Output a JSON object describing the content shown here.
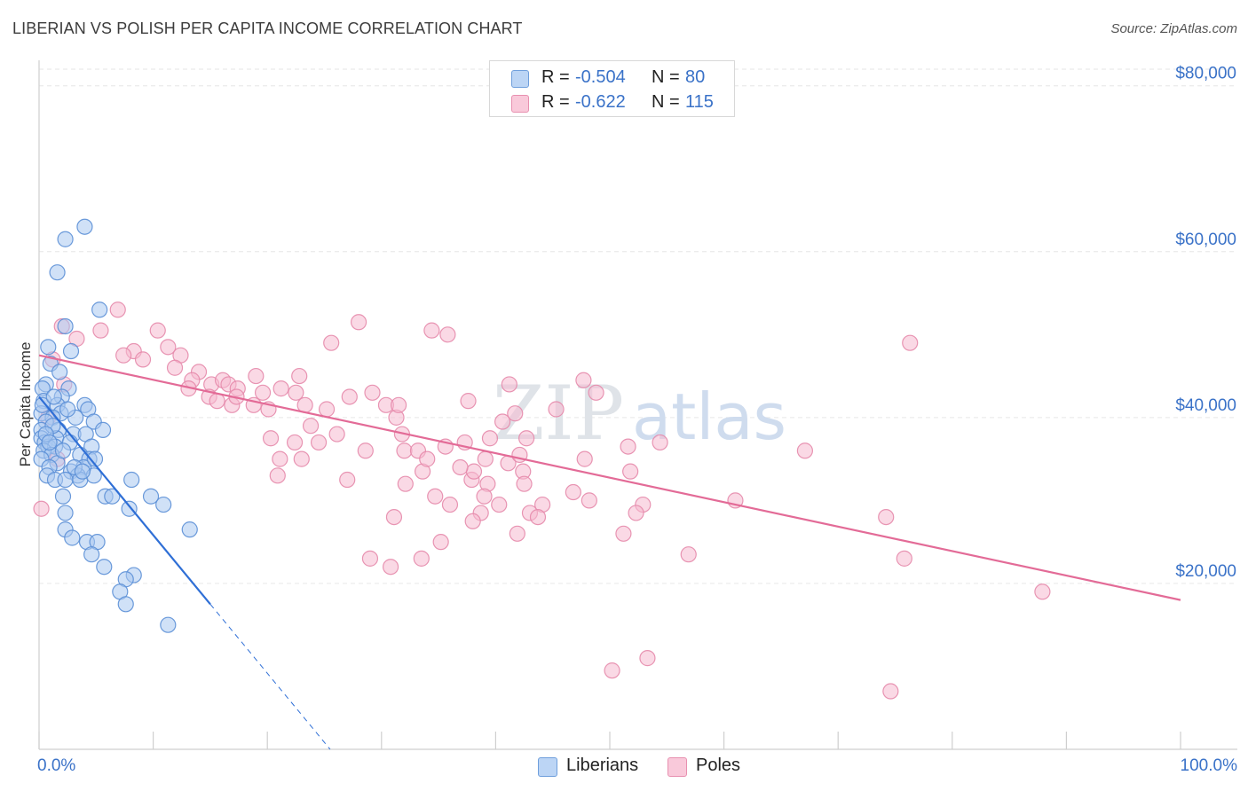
{
  "title": "LIBERIAN VS POLISH PER CAPITA INCOME CORRELATION CHART",
  "source": "Source: ZipAtlas.com",
  "watermark": {
    "zip": "ZIP",
    "atlas": "atlas"
  },
  "legend": {
    "rows": [
      {
        "r_label": "R =",
        "r_value": "-0.504",
        "n_label": "N =",
        "n_value": "80"
      },
      {
        "r_label": "R =",
        "r_value": "-0.622",
        "n_label": "N =",
        "n_value": "115"
      }
    ]
  },
  "bottom_legend": {
    "liberians": "Liberians",
    "poles": "Poles"
  },
  "colors": {
    "liberians_fill": "#a9c8f0",
    "liberians_stroke": "#5b8fd6",
    "liberians_line": "#2f6fd6",
    "poles_fill": "#f6b9cf",
    "poles_stroke": "#e58aab",
    "poles_line": "#e36b97",
    "axis_text": "#3a72c8",
    "grid": "#e6e6e6"
  },
  "chart_data": {
    "type": "scatter",
    "title": "LIBERIAN VS POLISH PER CAPITA INCOME CORRELATION CHART",
    "xlabel": "",
    "ylabel": "Per Capita Income",
    "xlim": [
      0,
      100
    ],
    "ylim": [
      0,
      82000
    ],
    "x_tick_labels": {
      "min": "0.0%",
      "max": "100.0%"
    },
    "y_ticks": [
      20000,
      40000,
      60000,
      80000
    ],
    "y_tick_labels": [
      "$20,000",
      "$40,000",
      "$60,000",
      "$80,000"
    ],
    "series": [
      {
        "name": "Liberians",
        "R": -0.504,
        "N": 80,
        "trend": {
          "x0": 0,
          "y0": 42500,
          "x1": 15,
          "y1": 17500,
          "dash_to_x": 25.5,
          "dash_to_y": 0
        },
        "points": [
          [
            4.0,
            63000
          ],
          [
            2.3,
            61500
          ],
          [
            1.6,
            57500
          ],
          [
            5.3,
            53000
          ],
          [
            2.3,
            51000
          ],
          [
            0.8,
            48500
          ],
          [
            2.8,
            48000
          ],
          [
            1.0,
            46500
          ],
          [
            1.8,
            45500
          ],
          [
            0.6,
            44000
          ],
          [
            0.3,
            43500
          ],
          [
            2.6,
            43500
          ],
          [
            2.0,
            42500
          ],
          [
            0.4,
            42000
          ],
          [
            1.6,
            41500
          ],
          [
            4.0,
            41500
          ],
          [
            4.3,
            41000
          ],
          [
            0.2,
            40500
          ],
          [
            1.9,
            40500
          ],
          [
            1.2,
            40000
          ],
          [
            3.2,
            40000
          ],
          [
            4.8,
            39500
          ],
          [
            0.6,
            39500
          ],
          [
            0.2,
            38500
          ],
          [
            1.7,
            38500
          ],
          [
            5.6,
            38500
          ],
          [
            3.0,
            38000
          ],
          [
            4.1,
            38000
          ],
          [
            0.2,
            37500
          ],
          [
            1.5,
            37500
          ],
          [
            2.7,
            37000
          ],
          [
            0.5,
            37000
          ],
          [
            0.8,
            36500
          ],
          [
            1.4,
            36500
          ],
          [
            4.6,
            36500
          ],
          [
            0.4,
            36000
          ],
          [
            1.1,
            35500
          ],
          [
            3.6,
            35500
          ],
          [
            0.2,
            35000
          ],
          [
            4.4,
            35000
          ],
          [
            1.6,
            34500
          ],
          [
            0.9,
            34000
          ],
          [
            3.9,
            34000
          ],
          [
            2.8,
            33500
          ],
          [
            0.7,
            33000
          ],
          [
            3.4,
            33000
          ],
          [
            8.1,
            32500
          ],
          [
            1.4,
            32500
          ],
          [
            2.3,
            32500
          ],
          [
            3.6,
            32500
          ],
          [
            4.8,
            33000
          ],
          [
            9.8,
            30500
          ],
          [
            2.1,
            30500
          ],
          [
            5.8,
            30500
          ],
          [
            6.4,
            30500
          ],
          [
            10.9,
            29500
          ],
          [
            7.9,
            29000
          ],
          [
            2.3,
            28500
          ],
          [
            13.2,
            26500
          ],
          [
            2.3,
            26500
          ],
          [
            2.9,
            25500
          ],
          [
            4.2,
            25000
          ],
          [
            5.1,
            25000
          ],
          [
            4.6,
            23500
          ],
          [
            5.7,
            22000
          ],
          [
            8.3,
            21000
          ],
          [
            7.6,
            20500
          ],
          [
            7.1,
            19000
          ],
          [
            7.6,
            17500
          ],
          [
            11.3,
            15000
          ],
          [
            1.2,
            39000
          ],
          [
            0.6,
            38000
          ],
          [
            3.1,
            34000
          ],
          [
            2.1,
            36000
          ],
          [
            0.3,
            41500
          ],
          [
            1.3,
            42500
          ],
          [
            2.5,
            41000
          ],
          [
            4.9,
            35000
          ],
          [
            0.9,
            37000
          ],
          [
            3.8,
            33500
          ]
        ]
      },
      {
        "name": "Poles",
        "R": -0.622,
        "N": 115,
        "trend": {
          "x0": 0,
          "y0": 47500,
          "x1": 100,
          "y1": 18000
        },
        "points": [
          [
            0.2,
            29000
          ],
          [
            2.0,
            51000
          ],
          [
            3.3,
            49500
          ],
          [
            1.2,
            47000
          ],
          [
            2.2,
            44000
          ],
          [
            0.8,
            40000
          ],
          [
            1.6,
            35000
          ],
          [
            6.9,
            53000
          ],
          [
            5.4,
            50500
          ],
          [
            8.3,
            48000
          ],
          [
            10.4,
            50500
          ],
          [
            11.3,
            48500
          ],
          [
            7.4,
            47500
          ],
          [
            9.1,
            47000
          ],
          [
            12.4,
            47500
          ],
          [
            14.0,
            45500
          ],
          [
            11.9,
            46000
          ],
          [
            13.4,
            44500
          ],
          [
            13.1,
            43500
          ],
          [
            15.1,
            44000
          ],
          [
            16.1,
            44500
          ],
          [
            16.6,
            44000
          ],
          [
            14.9,
            42500
          ],
          [
            17.4,
            43500
          ],
          [
            15.6,
            42000
          ],
          [
            19.0,
            45000
          ],
          [
            19.6,
            43000
          ],
          [
            18.8,
            41500
          ],
          [
            20.1,
            41000
          ],
          [
            16.9,
            41500
          ],
          [
            17.3,
            42500
          ],
          [
            21.2,
            43500
          ],
          [
            22.8,
            45000
          ],
          [
            22.5,
            43000
          ],
          [
            23.3,
            41500
          ],
          [
            20.3,
            37500
          ],
          [
            21.1,
            35000
          ],
          [
            20.9,
            33000
          ],
          [
            22.4,
            37000
          ],
          [
            23.8,
            39000
          ],
          [
            23.0,
            35000
          ],
          [
            24.5,
            37000
          ],
          [
            25.2,
            41000
          ],
          [
            26.1,
            38000
          ],
          [
            25.6,
            49000
          ],
          [
            28.0,
            51500
          ],
          [
            27.2,
            42500
          ],
          [
            29.2,
            43000
          ],
          [
            28.6,
            36000
          ],
          [
            27.0,
            32500
          ],
          [
            30.4,
            41500
          ],
          [
            31.3,
            40000
          ],
          [
            31.8,
            38000
          ],
          [
            32.0,
            36000
          ],
          [
            33.2,
            36000
          ],
          [
            34.4,
            50500
          ],
          [
            35.8,
            50000
          ],
          [
            35.6,
            36500
          ],
          [
            37.3,
            37000
          ],
          [
            37.6,
            42000
          ],
          [
            37.9,
            32500
          ],
          [
            38.1,
            33500
          ],
          [
            39.1,
            35000
          ],
          [
            40.6,
            39500
          ],
          [
            41.1,
            34500
          ],
          [
            39.3,
            32000
          ],
          [
            39.0,
            30500
          ],
          [
            38.7,
            28500
          ],
          [
            40.3,
            29500
          ],
          [
            42.1,
            35500
          ],
          [
            41.2,
            44000
          ],
          [
            41.7,
            40500
          ],
          [
            42.7,
            37500
          ],
          [
            42.4,
            33500
          ],
          [
            43.0,
            28500
          ],
          [
            44.1,
            29500
          ],
          [
            43.7,
            28000
          ],
          [
            41.9,
            26000
          ],
          [
            38.0,
            27500
          ],
          [
            36.0,
            29500
          ],
          [
            35.2,
            25000
          ],
          [
            33.5,
            23000
          ],
          [
            29.0,
            23000
          ],
          [
            30.8,
            22000
          ],
          [
            33.6,
            33500
          ],
          [
            47.7,
            44500
          ],
          [
            48.8,
            43000
          ],
          [
            51.6,
            36500
          ],
          [
            47.8,
            35000
          ],
          [
            46.8,
            31000
          ],
          [
            48.2,
            30000
          ],
          [
            51.8,
            33500
          ],
          [
            52.9,
            29500
          ],
          [
            52.3,
            28500
          ],
          [
            54.4,
            37000
          ],
          [
            56.9,
            23500
          ],
          [
            61.0,
            30000
          ],
          [
            67.1,
            36000
          ],
          [
            74.2,
            28000
          ],
          [
            76.3,
            49000
          ],
          [
            75.8,
            23000
          ],
          [
            87.9,
            19000
          ],
          [
            53.3,
            11000
          ],
          [
            50.2,
            9500
          ],
          [
            74.6,
            7000
          ],
          [
            31.1,
            28000
          ],
          [
            36.9,
            34000
          ],
          [
            45.3,
            41000
          ],
          [
            42.5,
            32000
          ],
          [
            32.1,
            32000
          ],
          [
            34.0,
            35000
          ],
          [
            39.5,
            37500
          ],
          [
            31.5,
            41500
          ],
          [
            34.7,
            30500
          ],
          [
            51.2,
            26000
          ]
        ]
      }
    ]
  }
}
